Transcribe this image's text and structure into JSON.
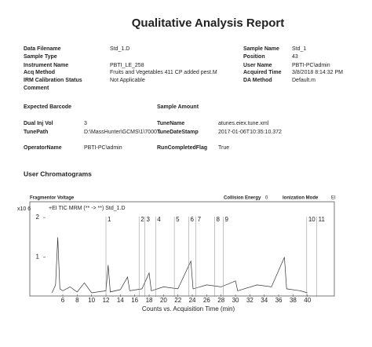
{
  "header": {
    "title": "Qualitative Analysis Report"
  },
  "info": {
    "data_filename": {
      "label": "Data Filename",
      "value": "Std_1.D"
    },
    "sample_type": {
      "label": "Sample Type"
    },
    "instrument_name": {
      "label": "Instrument Name",
      "value": "PBTI_LE_258"
    },
    "acq_method": {
      "label": "Acq Method",
      "value": "Fruits and Vegetables 411 CP added pest.M"
    },
    "irm": {
      "label": "IRM Calibration Status",
      "value": "Not Applicable"
    },
    "comment": {
      "label": "Comment"
    },
    "sample_name": {
      "label": "Sample Name",
      "value": "Std_1"
    },
    "position": {
      "label": "Position",
      "value": "43"
    },
    "user_name": {
      "label": "User Name",
      "value": "PBTI-PC\\admin"
    },
    "acquired_time": {
      "label": "Acquired Time",
      "value": "3/8/2018 8:14:32 PM"
    },
    "da_method": {
      "label": "DA Method",
      "value": "Default.m"
    },
    "expected_barcode": {
      "label": "Expected Barcode"
    },
    "sample_amount": {
      "label": "Sample Amount"
    },
    "dual_inj_vol": {
      "label": "Dual Inj Vol",
      "value": "3"
    },
    "tune_path": {
      "label": "TunePath",
      "value": "D:\\MassHunter\\GCMS\\1\\7000 \\"
    },
    "operator_name": {
      "label": "OperatorName",
      "value": "PBTI-PC\\admin"
    },
    "tune_name": {
      "label": "TuneName",
      "value": "atunes.eiex.tune.xml"
    },
    "tune_date": {
      "label": "TuneDateStamp",
      "value": "2017-01-06T10:35:10.372"
    },
    "run_completed": {
      "label": "RunCompletedFlag",
      "value": "True"
    }
  },
  "chromatograms": {
    "title": "User Chromatograms",
    "fragmentor": {
      "label": "Fragmentor Voltage"
    },
    "collision": {
      "label": "Collision Energy",
      "value": "0"
    },
    "ionization": {
      "label": "Ionization Mode",
      "value": "EI"
    },
    "chart_data": {
      "type": "line",
      "trace_label": "+EI TIC MRM (** -> **) Std_1.D",
      "y_multiplier": "x10 6",
      "x_label": "Counts vs. Acquisition Time (min)",
      "color": "#333333",
      "xlim": [
        3.6,
        43.3
      ],
      "ylim": [
        0,
        2.3
      ],
      "xticks": [
        6,
        8,
        10,
        12,
        14,
        16,
        18,
        20,
        22,
        24,
        26,
        28,
        30,
        32,
        34,
        36,
        38,
        40
      ],
      "yticks": [
        1,
        2
      ],
      "x": [
        4.5,
        5,
        5.3,
        5.6,
        6,
        7,
        8,
        9,
        10,
        12,
        12.3,
        12.6,
        14,
        15,
        15.3,
        17,
        18,
        18.3,
        20,
        22,
        23.8,
        24.1,
        26,
        28,
        30,
        30.3,
        33,
        35,
        36.8,
        37.1,
        39,
        40
      ],
      "values": [
        0.1,
        0.3,
        1.5,
        0.2,
        0.15,
        0.25,
        0.12,
        0.35,
        0.1,
        0.15,
        0.8,
        0.12,
        0.18,
        0.5,
        0.15,
        0.2,
        0.6,
        0.15,
        0.25,
        0.2,
        0.9,
        0.2,
        0.3,
        0.25,
        0.4,
        0.15,
        0.3,
        0.25,
        1.0,
        0.2,
        0.15,
        0.1
      ],
      "peaks": {
        "labels": [
          "1",
          "2",
          "3",
          "4",
          "5",
          "6",
          "7",
          "8",
          "9",
          "10",
          "11"
        ],
        "x": [
          12,
          16.6,
          17.4,
          18.9,
          21.5,
          23.5,
          24.5,
          27.1,
          28.3,
          39.9,
          41.3
        ]
      }
    }
  }
}
